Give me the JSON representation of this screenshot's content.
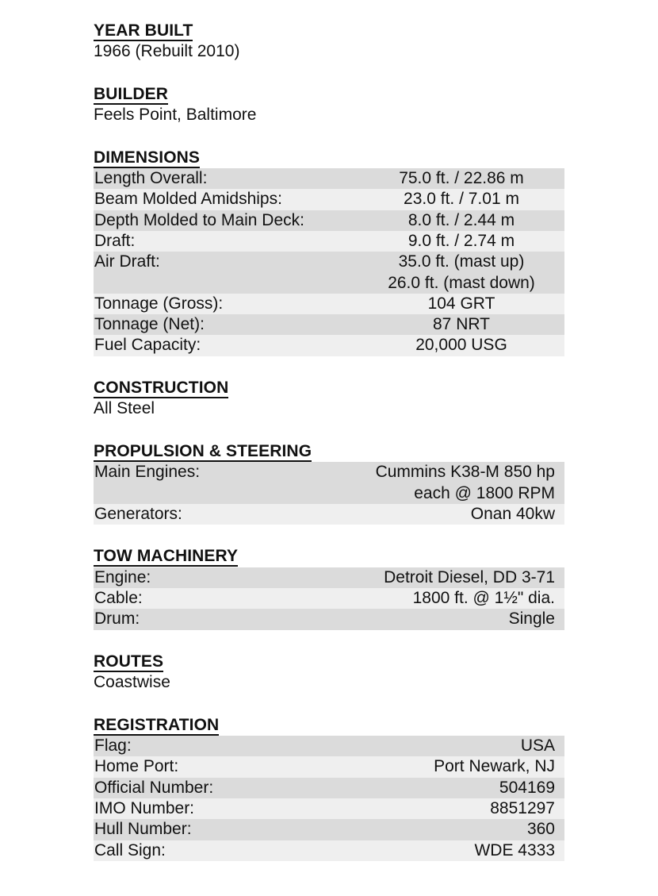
{
  "sections": [
    {
      "title": "YEAR BUILT",
      "text": "1966 (Rebuilt 2010)"
    },
    {
      "title": "BUILDER",
      "text": "Feels Point, Baltimore"
    },
    {
      "title": "DIMENSIONS",
      "align": "center",
      "rows": [
        {
          "label": "Length Overall:",
          "value": [
            "75.0 ft. / 22.86 m"
          ]
        },
        {
          "label": "Beam Molded Amidships:",
          "value": [
            "23.0 ft. / 7.01 m"
          ]
        },
        {
          "label": "Depth Molded to Main Deck:",
          "value": [
            "8.0 ft. / 2.44 m"
          ]
        },
        {
          "label": "Draft:",
          "value": [
            "9.0 ft. / 2.74 m"
          ]
        },
        {
          "label": "Air Draft:",
          "value": [
            "35.0 ft. (mast up)",
            "26.0 ft. (mast down)"
          ]
        },
        {
          "label": "Tonnage (Gross):",
          "value": [
            "104 GRT"
          ]
        },
        {
          "label": "Tonnage (Net):",
          "value": [
            "87 NRT"
          ]
        },
        {
          "label": "Fuel Capacity:",
          "value": [
            "20,000 USG"
          ]
        }
      ]
    },
    {
      "title": "CONSTRUCTION",
      "text": "All Steel"
    },
    {
      "title": "PROPULSION & STEERING",
      "rows": [
        {
          "label": "Main Engines:",
          "value": [
            "Cummins K38-M 850 hp",
            "each @ 1800 RPM"
          ]
        },
        {
          "label": "Generators:",
          "value": [
            "Onan 40kw"
          ]
        }
      ]
    },
    {
      "title": "TOW MACHINERY",
      "rows": [
        {
          "label": "Engine:",
          "value": [
            "Detroit Diesel, DD 3-71"
          ]
        },
        {
          "label": "Cable:",
          "value": [
            "1800 ft. @ 1½\" dia."
          ]
        },
        {
          "label": "Drum:",
          "value": [
            "Single"
          ]
        }
      ]
    },
    {
      "title": "ROUTES",
      "text": "Coastwise"
    },
    {
      "title": "REGISTRATION",
      "rows": [
        {
          "label": "Flag:",
          "value": [
            "USA"
          ]
        },
        {
          "label": "Home Port:",
          "value": [
            "Port Newark, NJ"
          ]
        },
        {
          "label": "Official Number:",
          "value": [
            "504169"
          ]
        },
        {
          "label": "IMO Number:",
          "value": [
            "8851297"
          ]
        },
        {
          "label": "Hull Number:",
          "value": [
            "360"
          ]
        },
        {
          "label": "Call Sign:",
          "value": [
            "WDE 4333"
          ]
        }
      ]
    }
  ],
  "colors": {
    "row_dark": "#dbdbdb",
    "row_light": "#efefef"
  }
}
